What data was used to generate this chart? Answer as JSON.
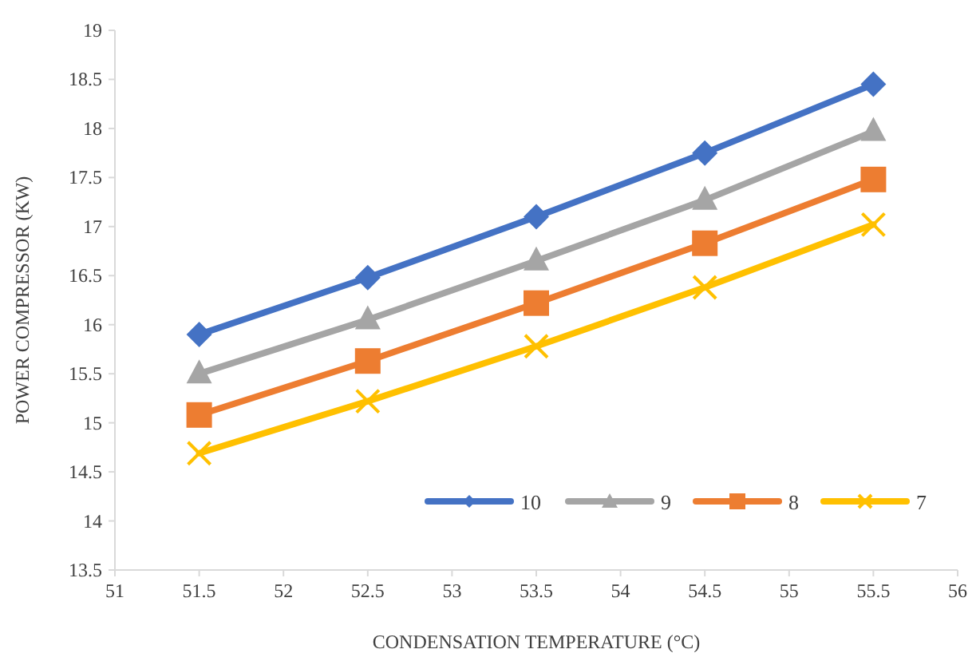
{
  "chart_data": {
    "type": "line",
    "xlabel": "CONDENSATION TEMPERATURE (°C)",
    "ylabel": "POWER COMPRESSOR (KW)",
    "x": [
      51.5,
      52.5,
      53.5,
      54.5,
      55.5
    ],
    "xlim": [
      51,
      56
    ],
    "xticks": [
      51,
      51.5,
      52,
      52.5,
      53,
      53.5,
      54,
      54.5,
      55,
      55.5,
      56
    ],
    "ylim": [
      13.5,
      19
    ],
    "yticks": [
      13.5,
      14,
      14.5,
      15,
      15.5,
      16,
      16.5,
      17,
      17.5,
      18,
      18.5,
      19
    ],
    "grid": false,
    "legend": "bottom right",
    "series": [
      {
        "name": "10",
        "color": "#4472c4",
        "marker": "diamond",
        "values": [
          15.9,
          16.48,
          17.1,
          17.75,
          18.45
        ]
      },
      {
        "name": "9",
        "color": "#a5a5a5",
        "marker": "triangle",
        "values": [
          15.5,
          16.05,
          16.65,
          17.27,
          17.97
        ]
      },
      {
        "name": "8",
        "color": "#ed7d31",
        "marker": "square",
        "values": [
          15.08,
          15.63,
          16.22,
          16.83,
          17.48
        ]
      },
      {
        "name": "7",
        "color": "#ffc000",
        "marker": "cross",
        "values": [
          14.69,
          15.22,
          15.78,
          16.38,
          17.02
        ]
      }
    ]
  }
}
